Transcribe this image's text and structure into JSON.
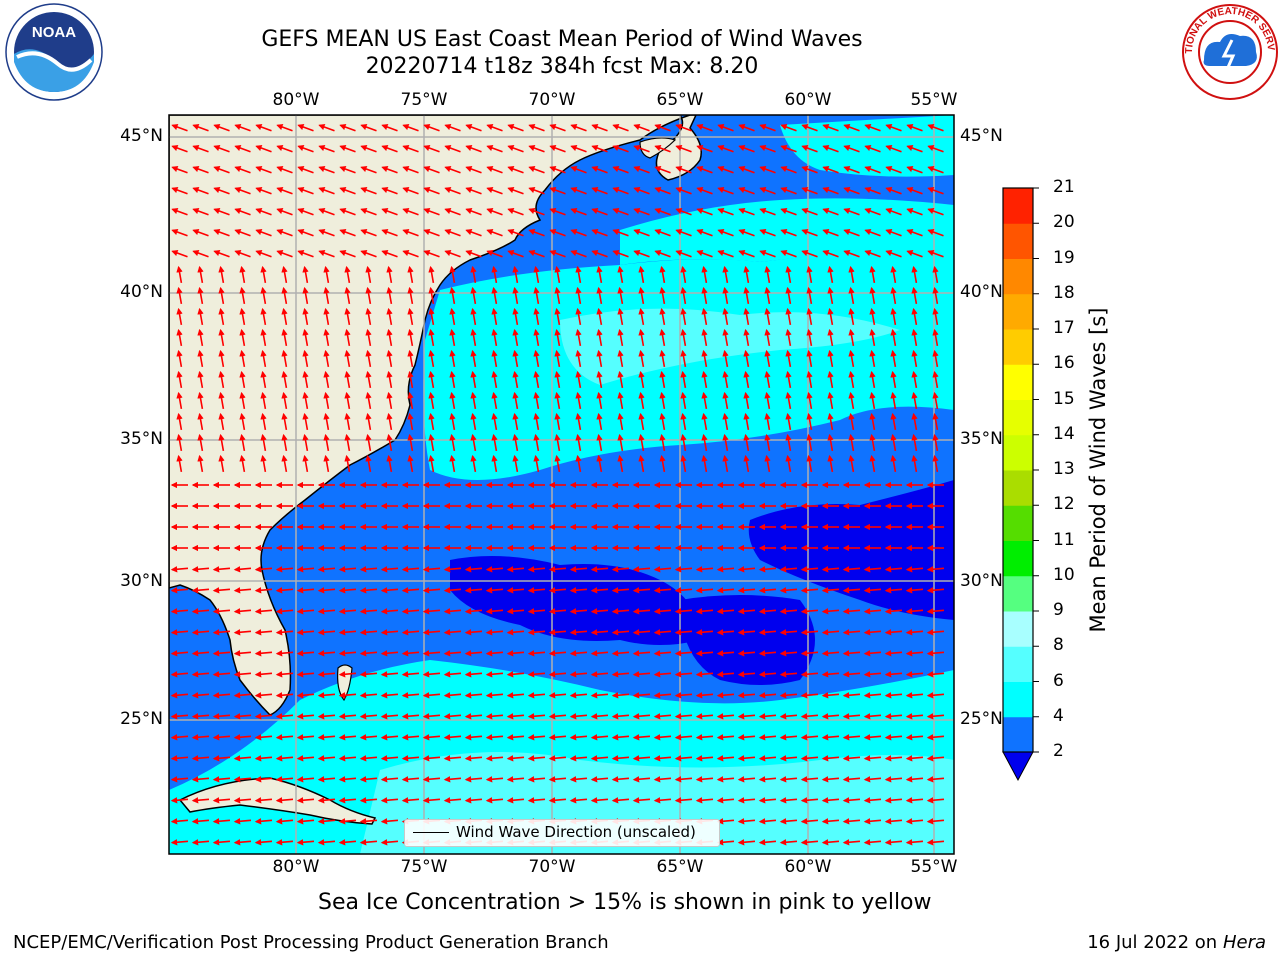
{
  "title_line1": "GEFS MEAN US East Coast Mean Period of Wind Waves",
  "title_line2": "20220714 t18z 384h fcst   Max: 8.20",
  "lon_ticks": [
    "80°W",
    "75°W",
    "70°W",
    "65°W",
    "60°W",
    "55°W"
  ],
  "lat_ticks": [
    "45°N",
    "40°N",
    "35°N",
    "30°N",
    "25°N"
  ],
  "colorbar": {
    "label": "Mean Period of Wind Waves [s]",
    "ticks": [
      "2",
      "4",
      "6",
      "8",
      "9",
      "10",
      "11",
      "12",
      "13",
      "14",
      "15",
      "16",
      "17",
      "18",
      "19",
      "20",
      "21"
    ],
    "colors": [
      "#0000ee",
      "#0f73ff",
      "#00ffff",
      "#55ffff",
      "#a8ffff",
      "#55ff80",
      "#00ee00",
      "#55dd00",
      "#aadd00",
      "#ccff00",
      "#e6ff00",
      "#ffff00",
      "#ffcc00",
      "#ffaa00",
      "#ff8800",
      "#ff5500",
      "#ff2200",
      "#ff0000"
    ]
  },
  "legend_label": "Wind Wave Direction (unscaled)",
  "sea_ice_note": "Sea Ice Concentration > 15% is shown in pink to yellow",
  "footer_left": "NCEP/EMC/Verification Post Processing Product Generation Branch",
  "footer_date": "16 Jul 2022 on ",
  "footer_host": "Hera",
  "logo_left_text": "NOAA",
  "logo_right_text": "NATIONAL WEATHER SERVICE",
  "colors": {
    "land": "#efeedc",
    "arrow": "#ff0000",
    "grid": "#b0b0b0",
    "deep_blue": "#0000ee",
    "mid_blue": "#0f73ff",
    "cyan": "#00ffff",
    "light_cyan": "#55ffff"
  }
}
